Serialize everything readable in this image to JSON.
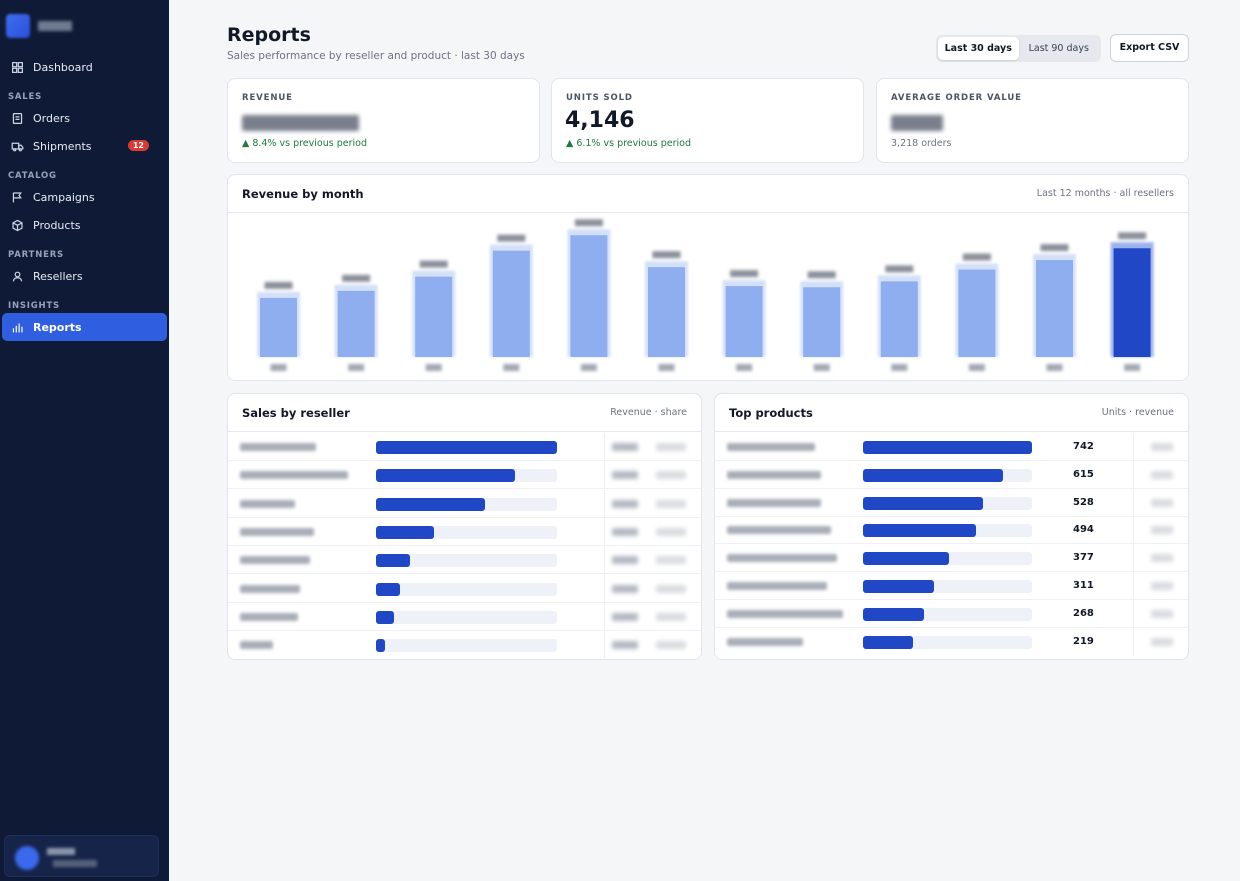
{
  "sidebar": {
    "items": {
      "dashboard": "Dashboard",
      "orders": "Orders",
      "shipments": "Shipments",
      "campaigns": "Campaigns",
      "products": "Products",
      "resellers": "Resellers",
      "reports": "Reports"
    },
    "sections": {
      "sales": "SALES",
      "catalog": "CATALOG",
      "partners": "PARTNERS",
      "insights": "INSIGHTS"
    },
    "shipments_badge": "12",
    "accent": "#2f5fe0",
    "background": "#0f1b36"
  },
  "header": {
    "title": "Reports",
    "subtitle": "Sales performance by reseller and product · last 30 days",
    "range_options": [
      "Last 30 days",
      "Last 90 days"
    ],
    "range_selected": "Last 30 days",
    "export_label": "Export CSV"
  },
  "kpis": {
    "revenue": {
      "label": "REVENUE",
      "delta": "▲ 8.4% vs previous period"
    },
    "units": {
      "label": "UNITS SOLD",
      "value": "4,146",
      "delta": "▲ 6.1% vs previous period"
    },
    "aov": {
      "label": "AVERAGE ORDER VALUE",
      "sub": "3,218 orders"
    }
  },
  "revenue_chart": {
    "title": "Revenue by month",
    "meta": "Last 12 months · all resellers",
    "highlight_color": "#1f47c6",
    "bar_color": "#8eaef0"
  },
  "chart_data": {
    "type": "bar",
    "title": "Revenue by month",
    "categories": [
      "",
      "",
      "",
      "",
      "",
      "",
      "",
      "",
      "",
      "",
      "",
      ""
    ],
    "values": [
      50,
      56,
      68,
      90,
      103,
      76,
      60,
      59,
      64,
      74,
      82,
      92
    ],
    "highlight_index": 11
  },
  "resellers": {
    "title": "Sales by reseller",
    "meta": "Revenue · share",
    "shares": [
      1.0,
      0.77,
      0.6,
      0.32,
      0.19,
      0.13,
      0.1,
      0.05
    ]
  },
  "products": {
    "title": "Top products",
    "meta": "Units · revenue",
    "units": [
      "742",
      "615",
      "528",
      "494",
      "377",
      "311",
      "268",
      "219"
    ],
    "max_units": 742
  }
}
